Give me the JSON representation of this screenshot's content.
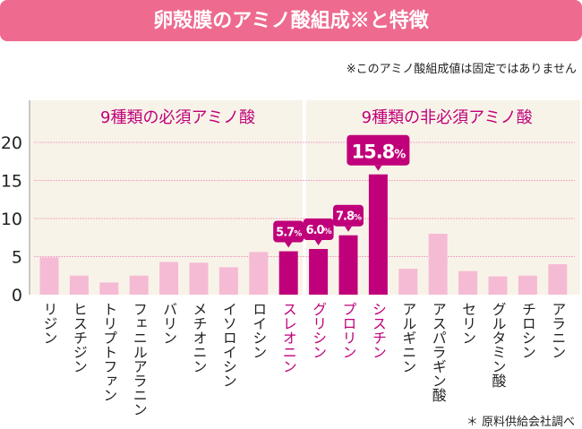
{
  "title": "卵殻膜のアミノ酸組成※と特徴",
  "note": "※このアミノ酸組成値は固定ではありません",
  "source": "＊ 原料供給会社調べ",
  "chart_data": {
    "type": "bar",
    "categories": [
      "リジン",
      "ヒスチジン",
      "トリプトファン",
      "フェニルアラニン",
      "バリン",
      "メチオニン",
      "イソロイシン",
      "ロイシン",
      "スレオニン",
      "グリシン",
      "プロリン",
      "シスチン",
      "アルギニン",
      "アスパラギン酸",
      "セリン",
      "グルタミン酸",
      "チロシン",
      "アラニン"
    ],
    "values": [
      4.9,
      2.5,
      1.6,
      2.5,
      4.3,
      4.2,
      3.6,
      5.6,
      5.7,
      6.0,
      7.8,
      15.8,
      3.4,
      8.0,
      3.1,
      2.4,
      2.5,
      4.0
    ],
    "highlighted": [
      false,
      false,
      false,
      false,
      false,
      false,
      false,
      false,
      true,
      true,
      true,
      true,
      false,
      false,
      false,
      false,
      false,
      false
    ],
    "data_labels": {
      "8": "5.7",
      "9": "6.0",
      "10": "7.8",
      "11": "15.8"
    },
    "label_unit": "%",
    "groups": [
      {
        "label": "9種類の必須アミノ酸",
        "count": 9
      },
      {
        "label": "9種類の非必須アミノ酸",
        "count": 9
      }
    ],
    "yticks": [
      0,
      5,
      10,
      15,
      20
    ],
    "ylim": [
      0,
      25
    ],
    "grid": true,
    "colors": {
      "normal": "#f5bbd4",
      "highlight": "#c0007a",
      "bg": "#f8f3e8",
      "grid": "#f0a8c8",
      "title_bg": "#ee6a8f"
    }
  }
}
